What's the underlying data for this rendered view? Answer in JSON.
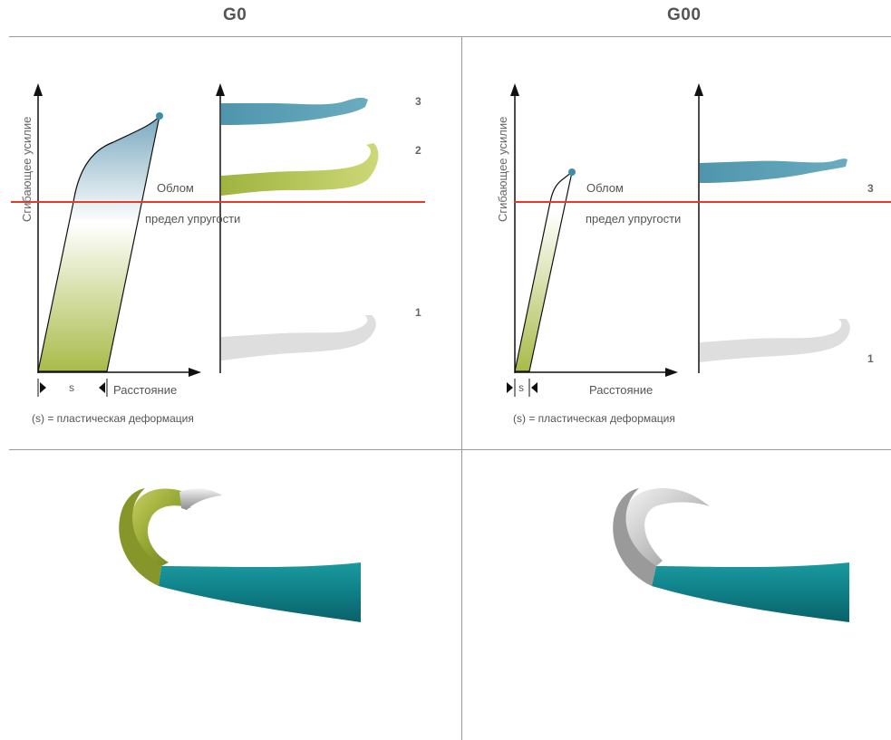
{
  "headers": {
    "left": "G0",
    "right": "G00"
  },
  "labels": {
    "y_axis": "Сгибающее усилие",
    "x_axis": "Расстояние",
    "break": "Облом",
    "elastic_limit": "предел упругости",
    "s": "s",
    "footnote": "(s) = пластическая деформация"
  },
  "left_panel": {
    "stage_numbers": [
      "3",
      "2",
      "1"
    ]
  },
  "right_panel": {
    "stage_numbers": [
      "3",
      "1"
    ]
  },
  "colors": {
    "limit_line": "#e53a2a",
    "green": "#a9bb4a",
    "blue": "#3f8ea6",
    "teal": "#0f7f86",
    "gray": "#d9d9d9"
  }
}
